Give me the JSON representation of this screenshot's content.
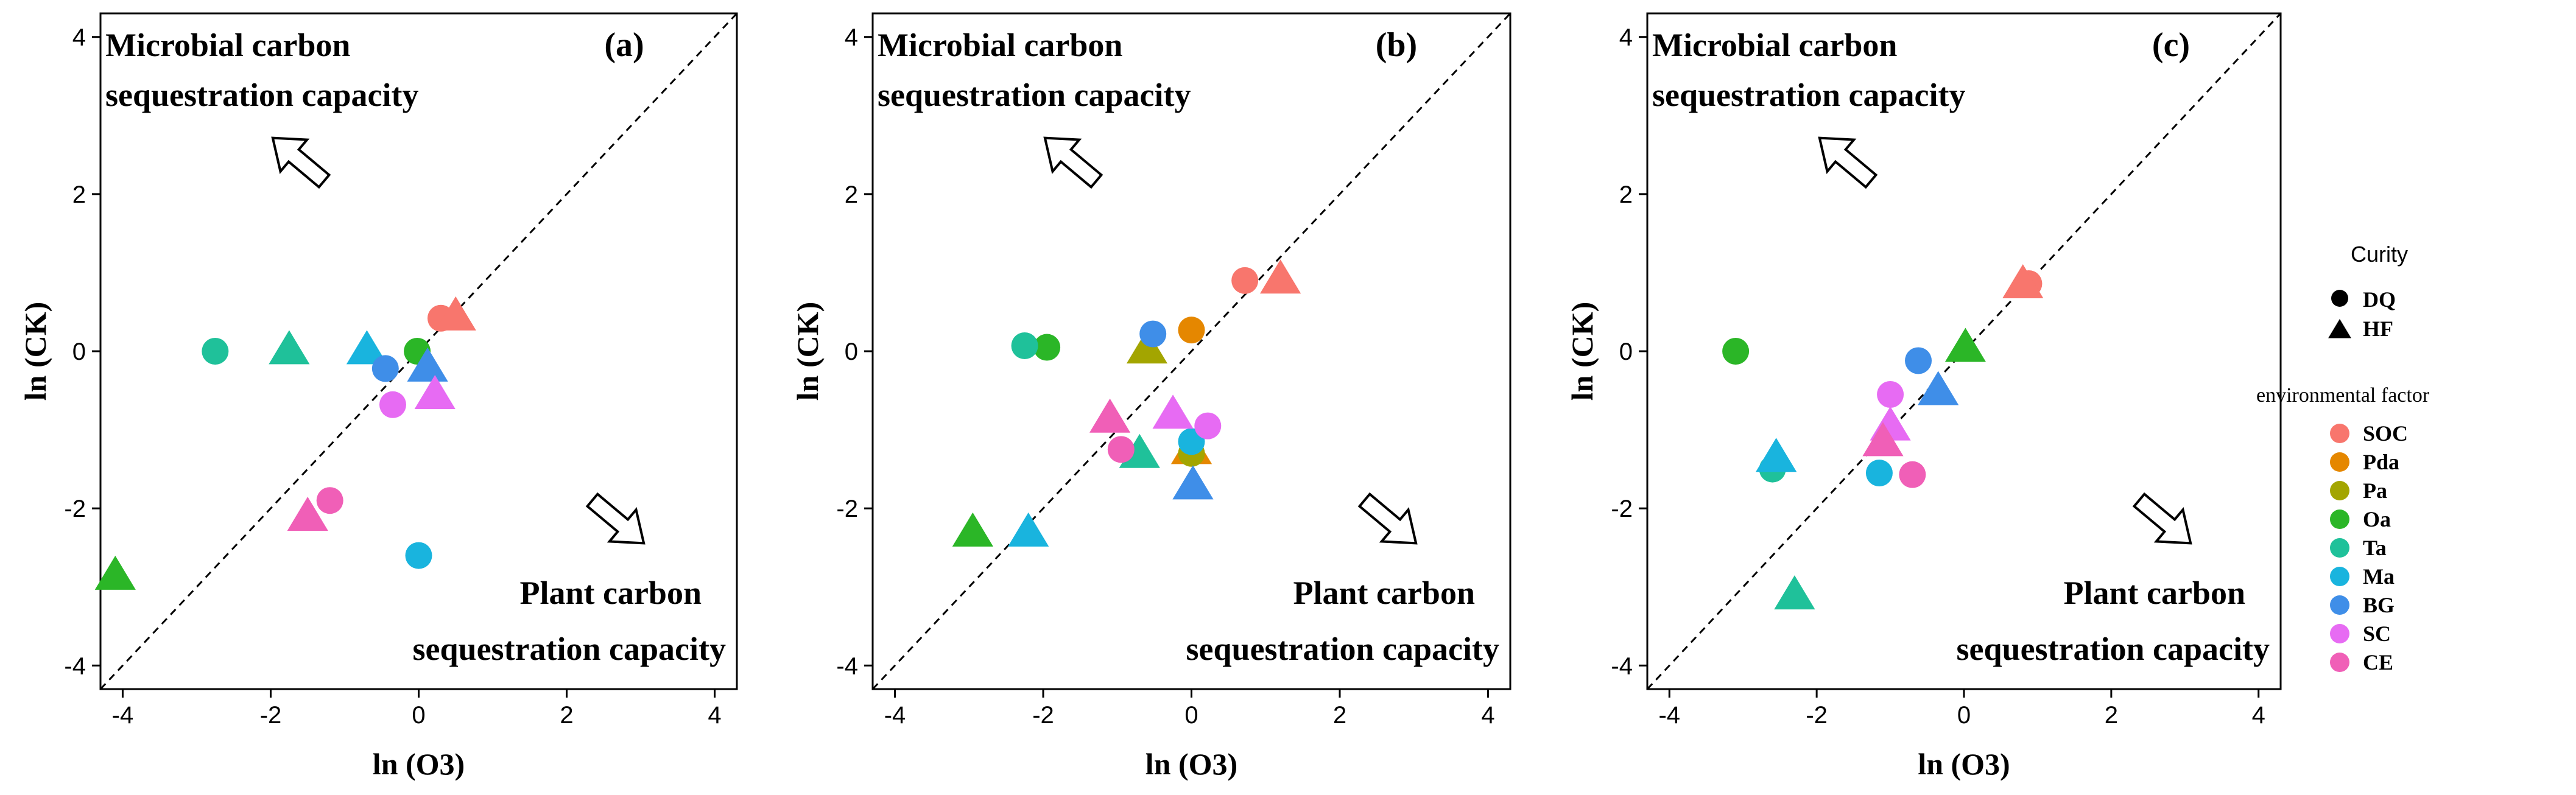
{
  "colors": {
    "SOC": "#F8766D",
    "Pda": "#E58700",
    "Pa": "#A3A500",
    "Oa": "#2BB627",
    "Ta": "#1FC19A",
    "Ma": "#19B4DE",
    "BG": "#3F8EE8",
    "SC": "#E76BF3",
    "CE": "#F05FB7"
  },
  "legend": {
    "curity_title": "Curity",
    "shape_items": [
      {
        "label": "DQ",
        "shape": "circle"
      },
      {
        "label": "HF",
        "shape": "triangle"
      }
    ],
    "env_title": "environmental factor",
    "env_items": [
      "SOC",
      "Pda",
      "Pa",
      "Oa",
      "Ta",
      "Ma",
      "BG",
      "SC",
      "CE"
    ]
  },
  "chart_data": [
    {
      "type": "scatter",
      "panel_label": "(a)",
      "xlabel": "ln (O3)",
      "ylabel": "ln (CK)",
      "xlim": [
        -4.3,
        4.3
      ],
      "ylim": [
        -4.3,
        4.3
      ],
      "xticks": [
        "-4",
        "-2",
        "0",
        "2",
        "4"
      ],
      "yticks": [
        "-4",
        "-2",
        "0",
        "2",
        "4"
      ],
      "reference_line": "y = x (dashed)",
      "annotation_top": [
        "Microbial carbon",
        "sequestration capacity"
      ],
      "annotation_bottom": [
        "Plant carbon",
        "sequestration capacity"
      ],
      "points": [
        {
          "factor": "SOC",
          "site": "DQ",
          "x": 0.3,
          "y": 0.42
        },
        {
          "factor": "SOC",
          "site": "HF",
          "x": 0.5,
          "y": 0.45
        },
        {
          "factor": "Oa",
          "site": "DQ",
          "x": -0.02,
          "y": 0.0
        },
        {
          "factor": "Oa",
          "site": "HF",
          "x": -4.1,
          "y": -2.85
        },
        {
          "factor": "Ta",
          "site": "DQ",
          "x": -2.75,
          "y": 0.0
        },
        {
          "factor": "Ta",
          "site": "HF",
          "x": -1.75,
          "y": 0.02
        },
        {
          "factor": "Ma",
          "site": "DQ",
          "x": 0.0,
          "y": -2.6
        },
        {
          "factor": "Ma",
          "site": "HF",
          "x": -0.7,
          "y": 0.02
        },
        {
          "factor": "BG",
          "site": "DQ",
          "x": -0.45,
          "y": -0.22
        },
        {
          "factor": "BG",
          "site": "HF",
          "x": 0.12,
          "y": -0.2
        },
        {
          "factor": "SC",
          "site": "DQ",
          "x": -0.35,
          "y": -0.68
        },
        {
          "factor": "SC",
          "site": "HF",
          "x": 0.22,
          "y": -0.55
        },
        {
          "factor": "CE",
          "site": "DQ",
          "x": -1.2,
          "y": -1.9
        },
        {
          "factor": "CE",
          "site": "HF",
          "x": -1.5,
          "y": -2.1
        }
      ]
    },
    {
      "type": "scatter",
      "panel_label": "(b)",
      "xlabel": "ln (O3)",
      "ylabel": "ln (CK)",
      "xlim": [
        -4.3,
        4.3
      ],
      "ylim": [
        -4.3,
        4.3
      ],
      "xticks": [
        "-4",
        "-2",
        "0",
        "2",
        "4"
      ],
      "yticks": [
        "-4",
        "-2",
        "0",
        "2",
        "4"
      ],
      "reference_line": "y = x (dashed)",
      "annotation_top": [
        "Microbial carbon",
        "sequestration capacity"
      ],
      "annotation_bottom": [
        "Plant carbon",
        "sequestration capacity"
      ],
      "points": [
        {
          "factor": "SOC",
          "site": "DQ",
          "x": 0.72,
          "y": 0.9
        },
        {
          "factor": "SOC",
          "site": "HF",
          "x": 1.2,
          "y": 0.92
        },
        {
          "factor": "Pda",
          "site": "DQ",
          "x": 0.0,
          "y": 0.27
        },
        {
          "factor": "Pda",
          "site": "HF",
          "x": 0.0,
          "y": -1.25
        },
        {
          "factor": "Pa",
          "site": "DQ",
          "x": 0.0,
          "y": -1.3
        },
        {
          "factor": "Pa",
          "site": "HF",
          "x": -0.6,
          "y": 0.03
        },
        {
          "factor": "Oa",
          "site": "DQ",
          "x": -1.95,
          "y": 0.05
        },
        {
          "factor": "Oa",
          "site": "HF",
          "x": -2.95,
          "y": -2.3
        },
        {
          "factor": "Ta",
          "site": "DQ",
          "x": -2.25,
          "y": 0.07
        },
        {
          "factor": "Ta",
          "site": "HF",
          "x": -0.7,
          "y": -1.3
        },
        {
          "factor": "Ma",
          "site": "DQ",
          "x": 0.0,
          "y": -1.15
        },
        {
          "factor": "Ma",
          "site": "HF",
          "x": -2.2,
          "y": -2.3
        },
        {
          "factor": "BG",
          "site": "DQ",
          "x": -0.52,
          "y": 0.22
        },
        {
          "factor": "BG",
          "site": "HF",
          "x": 0.02,
          "y": -1.7
        },
        {
          "factor": "SC",
          "site": "DQ",
          "x": 0.22,
          "y": -0.95
        },
        {
          "factor": "SC",
          "site": "HF",
          "x": -0.25,
          "y": -0.8
        },
        {
          "factor": "CE",
          "site": "DQ",
          "x": -0.95,
          "y": -1.25
        },
        {
          "factor": "CE",
          "site": "HF",
          "x": -1.1,
          "y": -0.85
        }
      ]
    },
    {
      "type": "scatter",
      "panel_label": "(c)",
      "xlabel": "ln (O3)",
      "ylabel": "ln (CK)",
      "xlim": [
        -4.3,
        4.3
      ],
      "ylim": [
        -4.3,
        4.3
      ],
      "xticks": [
        "-4",
        "-2",
        "0",
        "2",
        "4"
      ],
      "yticks": [
        "-4",
        "-2",
        "0",
        "2",
        "4"
      ],
      "reference_line": "y = x (dashed)",
      "annotation_top": [
        "Microbial carbon",
        "sequestration capacity"
      ],
      "annotation_bottom": [
        "Plant carbon",
        "sequestration capacity"
      ],
      "points": [
        {
          "factor": "SOC",
          "site": "DQ",
          "x": 0.88,
          "y": 0.86
        },
        {
          "factor": "SOC",
          "site": "HF",
          "x": 0.8,
          "y": 0.86
        },
        {
          "factor": "Oa",
          "site": "DQ",
          "x": -3.1,
          "y": 0.0
        },
        {
          "factor": "Oa",
          "site": "HF",
          "x": 0.02,
          "y": 0.05
        },
        {
          "factor": "Ta",
          "site": "DQ",
          "x": -2.6,
          "y": -1.5
        },
        {
          "factor": "Ta",
          "site": "HF",
          "x": -2.3,
          "y": -3.1
        },
        {
          "factor": "Ma",
          "site": "DQ",
          "x": -1.15,
          "y": -1.55
        },
        {
          "factor": "Ma",
          "site": "HF",
          "x": -2.55,
          "y": -1.35
        },
        {
          "factor": "BG",
          "site": "DQ",
          "x": -0.62,
          "y": -0.12
        },
        {
          "factor": "BG",
          "site": "HF",
          "x": -0.35,
          "y": -0.5
        },
        {
          "factor": "SC",
          "site": "DQ",
          "x": -1.0,
          "y": -0.55
        },
        {
          "factor": "SC",
          "site": "HF",
          "x": -1.0,
          "y": -0.95
        },
        {
          "factor": "CE",
          "site": "DQ",
          "x": -0.7,
          "y": -1.57
        },
        {
          "factor": "CE",
          "site": "HF",
          "x": -1.1,
          "y": -1.15
        }
      ]
    }
  ]
}
